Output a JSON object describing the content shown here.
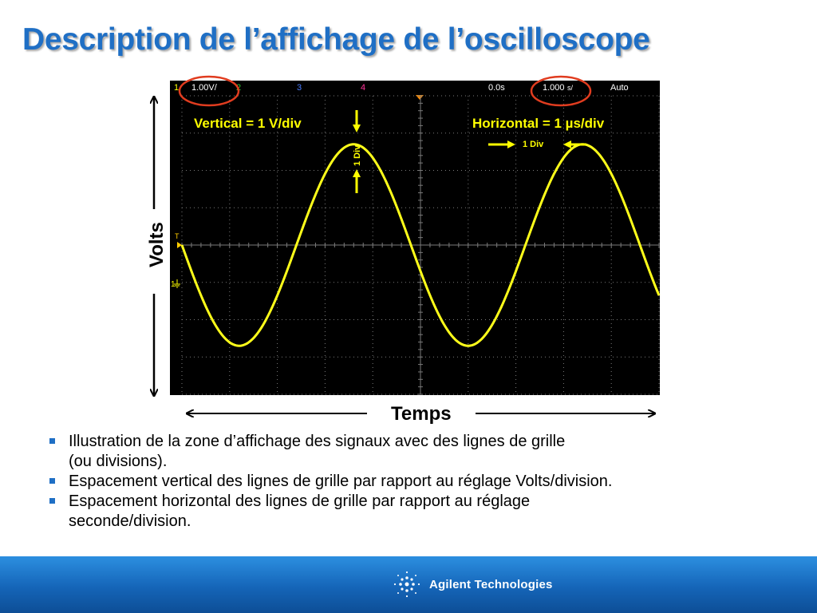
{
  "slide": {
    "title": "Description de l’affichage de l’oscilloscope"
  },
  "scope": {
    "status_bar": {
      "ch1_number": "1",
      "ch1_scale": "1.00V/",
      "ch2_number": "2",
      "ch3_number": "3",
      "ch4_number": "4",
      "time_delay": "0.0s",
      "time_scale": "1.000",
      "time_unit_glyph": "s/",
      "trigger_mode": "Auto"
    },
    "annotations": {
      "vertical_setting": "Vertical = 1 V/div",
      "horizontal_setting": "Horizontal = 1 µs/div",
      "vertical_div_label": "1 Div",
      "horizontal_div_label": "1 Div",
      "volts_axis_label": "Volts",
      "time_axis_label": "Temps",
      "trigger_marker": "T",
      "ground_marker": "1"
    },
    "colors": {
      "background": "#000000",
      "grid": "#7a7a7a",
      "trace": "#ffff1a",
      "ch1": "#ffff00",
      "ch2": "#33cc33",
      "ch3": "#4a7cff",
      "ch4": "#ff3399",
      "annotation": "#ffff00",
      "highlight_circle": "#e03c1f"
    },
    "waveform": {
      "type": "sine",
      "amplitude_v": 2.7,
      "period_us": 4.8,
      "phase_at_left_edge_deg": 180
    },
    "grid": {
      "divisions_x": 10,
      "divisions_y": 8
    }
  },
  "bullets": [
    {
      "line1": "Illustration de la zone d’affichage des signaux avec des lignes de grille",
      "line2": "(ou divisions)."
    },
    {
      "line1": "Espacement vertical des lignes de grille par rapport au réglage Volts/division.",
      "line2": ""
    },
    {
      "line1": "Espacement horizontal des lignes de grille par rapport au réglage",
      "line2": "seconde/division."
    }
  ],
  "footer": {
    "brand": "Agilent Technologies",
    "logo_icon": "agilent-spark-icon"
  }
}
